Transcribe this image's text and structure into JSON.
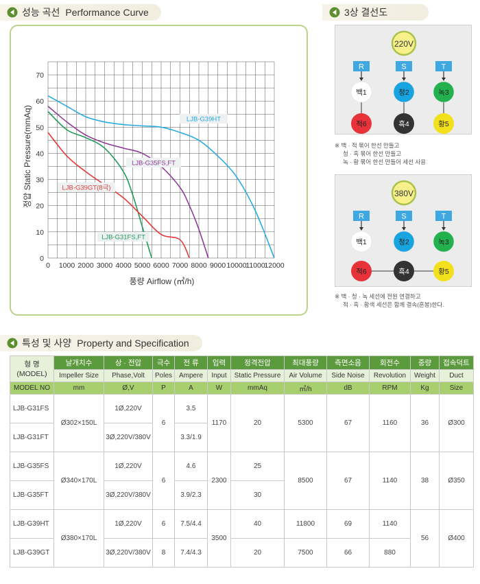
{
  "perf_header": {
    "ko": "성능 곡선",
    "en": "Performance Curve"
  },
  "wiring_header": {
    "ko": "3상 결선도"
  },
  "spec_header": {
    "ko": "특성 및 사양",
    "en": "Property and Specification"
  },
  "chart_data": {
    "type": "line",
    "xlabel": "풍량 Airflow (㎥/h)",
    "ylabel": "정압 Static Pressure(mmAq)",
    "xlim": [
      0,
      12000
    ],
    "ylim": [
      0,
      75
    ],
    "x_ticks": [
      "0",
      "1000",
      "2000",
      "3000",
      "4000",
      "5000",
      "6000",
      "7000",
      "8000",
      "9000",
      "10000",
      "11000",
      "12000"
    ],
    "y_ticks": [
      "0",
      "10",
      "20",
      "30",
      "40",
      "50",
      "60",
      "70"
    ],
    "grid": true,
    "series": [
      {
        "name": "LJB-G39HT",
        "color": "#29abe2",
        "x": [
          0,
          1000,
          2000,
          3000,
          4000,
          5000,
          6000,
          7000,
          8000,
          9000,
          10000,
          11000,
          12000
        ],
        "y": [
          62,
          58,
          54,
          52,
          51,
          50.5,
          50,
          48,
          45,
          39,
          31,
          18,
          0
        ]
      },
      {
        "name": "LJB-G35FS,FT",
        "color": "#8e3a9a",
        "x": [
          0,
          1000,
          2000,
          3000,
          4000,
          5000,
          6000,
          7000,
          7500,
          8000,
          8500
        ],
        "y": [
          58,
          52,
          47,
          44,
          42,
          40,
          35,
          27,
          20,
          11,
          0
        ]
      },
      {
        "name": "LJB-G31FS,FT",
        "color": "#1e9a5a",
        "x": [
          0,
          1000,
          2000,
          3000,
          4000,
          4500,
          5000,
          5500
        ],
        "y": [
          56,
          49,
          46,
          42,
          33,
          24,
          12,
          0
        ]
      },
      {
        "name": "LJB-G39GT(8극)",
        "color": "#e23a3a",
        "x": [
          0,
          1000,
          2000,
          3000,
          4000,
          5000,
          6000,
          7000,
          7500
        ],
        "y": [
          48,
          39,
          33,
          28,
          23,
          16,
          9,
          7,
          0
        ]
      }
    ],
    "labels": [
      "LJB-G39HT",
      "LJB-G35FS,FT",
      "LJB-G39GT(8극)",
      "LJB-G31FS,FT"
    ]
  },
  "wiring": [
    {
      "voltage": "220V",
      "phases": [
        "R",
        "S",
        "T"
      ],
      "top_nodes": [
        {
          "label": "백1",
          "color": "#ffffff"
        },
        {
          "label": "청2",
          "color": "#17a4e0"
        },
        {
          "label": "녹3",
          "color": "#23b14d"
        }
      ],
      "bottom_nodes": [
        {
          "label": "적6",
          "color": "#e8323a"
        },
        {
          "label": "흑4",
          "color": "#333333"
        },
        {
          "label": "황5",
          "color": "#f3e01c"
        }
      ],
      "note": [
        "※ 백 · 적 묶어 한선 만들고",
        "청 · 흑 묶어 한선 만들고",
        "녹 · 황 묶어 한선 만들어 세선 사용"
      ]
    },
    {
      "voltage": "380V",
      "phases": [
        "R",
        "S",
        "T"
      ],
      "top_nodes": [
        {
          "label": "백1",
          "color": "#ffffff"
        },
        {
          "label": "청2",
          "color": "#17a4e0"
        },
        {
          "label": "녹3",
          "color": "#23b14d"
        }
      ],
      "bottom_nodes": [
        {
          "label": "적6",
          "color": "#e8323a"
        },
        {
          "label": "흑4",
          "color": "#333333"
        },
        {
          "label": "황5",
          "color": "#f3e01c"
        }
      ],
      "note": [
        "※ 백 · 청 · 녹 세선에 전원 연결하고",
        "적 · 흑 · 황색 세선은 함께 결속(혼봉)한다."
      ]
    }
  ],
  "table": {
    "h1": [
      "형    명",
      "날개치수",
      "상 · 전압",
      "극수",
      "전    류",
      "입력",
      "정격전압",
      "최대풍량",
      "측면소음",
      "회전수",
      "중량",
      "접속덕트"
    ],
    "h1_model_sub": "(MODEL)",
    "h2": [
      "Impeller Size",
      "Phase,Volt",
      "Poles",
      "Ampere",
      "Input",
      "Static Pressure",
      "Air Volume",
      "Side Noise",
      "Revolution",
      "Weight",
      "Duct"
    ],
    "h3": [
      "MODEL NO",
      "mm",
      "Ø,V",
      "P",
      "A",
      "W",
      "mmAq",
      "㎥/h",
      "dB",
      "RPM",
      "Kg",
      "Size"
    ],
    "rows": {
      "g31fs_model": "LJB-G31FS",
      "g31ft_model": "LJB-G31FT",
      "g31_size": "Ø302×150L",
      "g31fs_phase": "1Ø,220V",
      "g31ft_phase": "3Ø,220V/380V",
      "g31_poles": "6",
      "g31fs_amp": "3.5",
      "g31ft_amp": "3.3/1.9",
      "g31_input": "1170",
      "g31_static": "20",
      "g31_air": "5300",
      "g31_noise": "67",
      "g31_rpm": "1160",
      "g31_weight": "36",
      "g31_duct": "Ø300",
      "g35fs_model": "LJB-G35FS",
      "g35ft_model": "LJB-G35FT",
      "g35_size": "Ø340×170L",
      "g35fs_phase": "1Ø,220V",
      "g35ft_phase": "3Ø,220V/380V",
      "g35_poles": "6",
      "g35fs_amp": "4.6",
      "g35ft_amp": "3.9/2.3",
      "g35_input": "2300",
      "g35fs_static": "25",
      "g35ft_static": "30",
      "g35_air": "8500",
      "g35_noise": "67",
      "g35_rpm": "1140",
      "g35_weight": "38",
      "g35_duct": "Ø350",
      "g39ht_model": "LJB-G39HT",
      "g39gt_model": "LJB-G39GT",
      "g39_size": "Ø380×170L",
      "g39ht_phase": "1Ø,220V",
      "g39gt_phase": "3Ø,220V/380V",
      "g39ht_poles": "6",
      "g39gt_poles": "8",
      "g39ht_amp": "7.5/4.4",
      "g39gt_amp": "7.4/4.3",
      "g39_input": "3500",
      "g39ht_static": "40",
      "g39gt_static": "20",
      "g39ht_air": "11800",
      "g39gt_air": "7500",
      "g39ht_noise": "69",
      "g39gt_noise": "66",
      "g39ht_rpm": "1140",
      "g39gt_rpm": "880",
      "g39_weight": "56",
      "g39_duct": "Ø400"
    }
  }
}
